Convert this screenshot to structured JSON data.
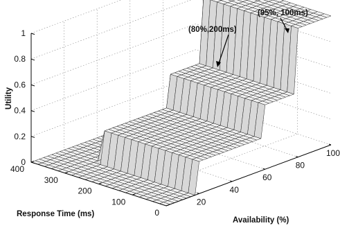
{
  "chart_data": {
    "type": "surface",
    "zlabel": "Utility",
    "xlabel": "Availability (%)",
    "ylabel": "Response Time (ms)",
    "x_ticks": [
      "20",
      "40",
      "60",
      "80",
      "100"
    ],
    "y_ticks": [
      "0",
      "100",
      "200",
      "300",
      "400"
    ],
    "z_ticks": [
      "0",
      "0.2",
      "0.4",
      "0.6",
      "0.8",
      "1"
    ],
    "xlim": [
      0,
      100
    ],
    "ylim": [
      0,
      400
    ],
    "zlim": [
      0,
      1
    ],
    "grid": true,
    "annotations": [
      {
        "text": "(95%, 100ms)",
        "x": 95,
        "y": 100,
        "z": 1.0
      },
      {
        "text": "(80%,200ms)",
        "x": 80,
        "y": 200,
        "z": 0.85
      }
    ],
    "surface_profile": {
      "availability_steps": [
        {
          "from": 0,
          "to": 20,
          "utility": 0.0
        },
        {
          "from": 20,
          "to": 60,
          "utility": 0.25
        },
        {
          "from": 60,
          "to": 80,
          "utility": 0.5
        },
        {
          "from": 80,
          "to": 100,
          "utility": 1.0
        }
      ],
      "response_time_steps": [
        {
          "from": 0,
          "to": 300,
          "factor": 1.0
        },
        {
          "from": 300,
          "to": 400,
          "factor": 0.0
        }
      ]
    }
  }
}
